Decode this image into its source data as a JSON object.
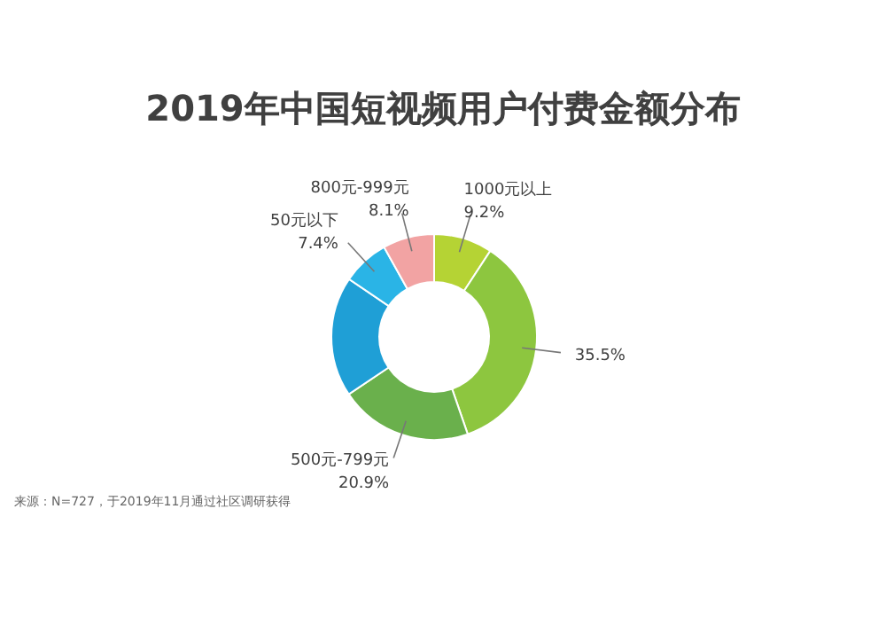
{
  "chart_data": {
    "type": "donut",
    "title": "2019年中国短视频用户付费金额分布",
    "categories": [
      "1000元以上",
      null,
      "500元-799元",
      null,
      "50元以下",
      "800元-999元"
    ],
    "values": [
      9.2,
      35.5,
      20.9,
      18.9,
      7.4,
      8.1
    ],
    "value_labels": [
      "9.2%",
      "35.5%",
      "20.9%",
      null,
      "7.4%",
      "8.1%"
    ],
    "colors": [
      "#b5d334",
      "#8dc63f",
      "#6ab04c",
      "#1f9fd6",
      "#2ab4e6",
      "#f2a3a3"
    ],
    "annotations": [
      "来源：N=727，于2019年11月通过社区调研获得"
    ]
  }
}
